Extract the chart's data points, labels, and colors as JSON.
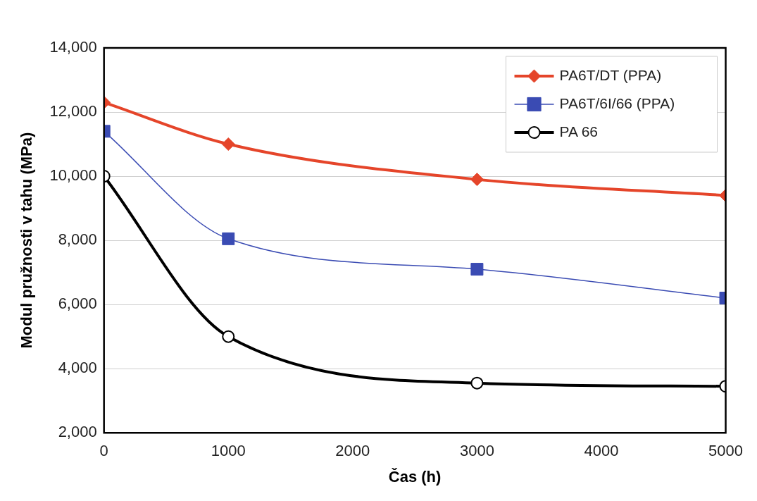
{
  "chart_data": {
    "type": "line",
    "xlabel": "Čas (h)",
    "ylabel": "Modul pružnosti v tahu (MPa)",
    "xlim": [
      0,
      5000
    ],
    "xticks": [
      0,
      1000,
      2000,
      3000,
      4000,
      5000
    ],
    "ylim": [
      2000,
      14000
    ],
    "yticks": [
      {
        "value": 2000,
        "label": "2,000"
      },
      {
        "value": 4000,
        "label": "4,000"
      },
      {
        "value": 6000,
        "label": "6,000"
      },
      {
        "value": 8000,
        "label": "8,000"
      },
      {
        "value": 10000,
        "label": "10,000"
      },
      {
        "value": 12000,
        "label": "12,000"
      },
      {
        "value": 14000,
        "label": "14,000"
      }
    ],
    "grid": "y",
    "legend": "top right",
    "series": [
      {
        "name": "PA6T/DT (PPA)",
        "color": "#e5452a",
        "marker": "diamond",
        "x": [
          0,
          1000,
          3000,
          5000
        ],
        "values": [
          12300,
          11000,
          9900,
          9400
        ]
      },
      {
        "name": "PA6T/6I/66 (PPA)",
        "color": "#3a4bb3",
        "marker": "square",
        "x": [
          0,
          1000,
          3000,
          5000
        ],
        "values": [
          11400,
          8050,
          7100,
          6200
        ]
      },
      {
        "name": "PA 66",
        "color": "#000000",
        "marker": "circle",
        "x": [
          0,
          1000,
          3000,
          5000
        ],
        "values": [
          10000,
          5000,
          3550,
          3450
        ]
      }
    ]
  }
}
